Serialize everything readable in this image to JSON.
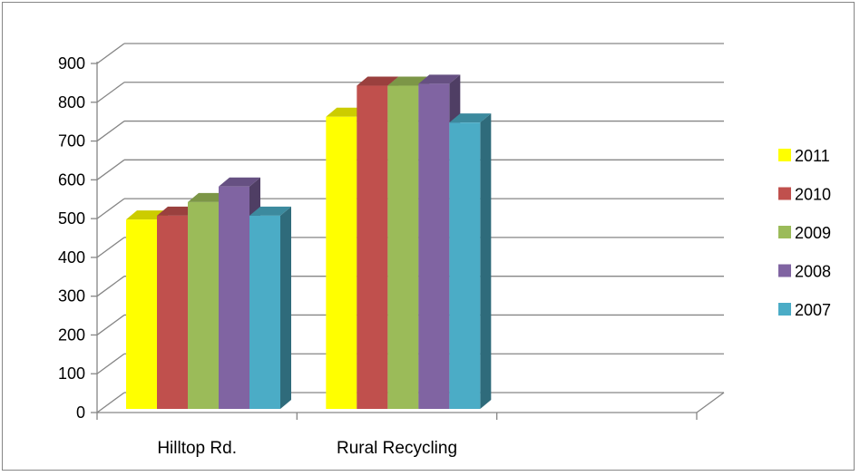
{
  "chart_data": {
    "type": "bar",
    "style": "3d-clustered-column",
    "categories": [
      "Hilltop Rd.",
      "Rural Recycling",
      ""
    ],
    "series": [
      {
        "name": "2011",
        "color": "#ffff00",
        "values": [
          500,
          765,
          null
        ]
      },
      {
        "name": "2010",
        "color": "#c0504d",
        "values": [
          510,
          845,
          null
        ]
      },
      {
        "name": "2009",
        "color": "#9bbb59",
        "values": [
          545,
          845,
          null
        ]
      },
      {
        "name": "2008",
        "color": "#8064a2",
        "values": [
          585,
          850,
          null
        ]
      },
      {
        "name": "2007",
        "color": "#4bacc6",
        "values": [
          510,
          750,
          null
        ]
      }
    ],
    "title": "",
    "xlabel": "",
    "ylabel": "",
    "ylim": [
      0,
      900
    ],
    "y_ticks": [
      "0",
      "100",
      "200",
      "300",
      "400",
      "500",
      "600",
      "700",
      "800",
      "900"
    ],
    "grid": true,
    "legend_position": "right",
    "legend_order": [
      "2011",
      "2010",
      "2009",
      "2008",
      "2007"
    ]
  }
}
